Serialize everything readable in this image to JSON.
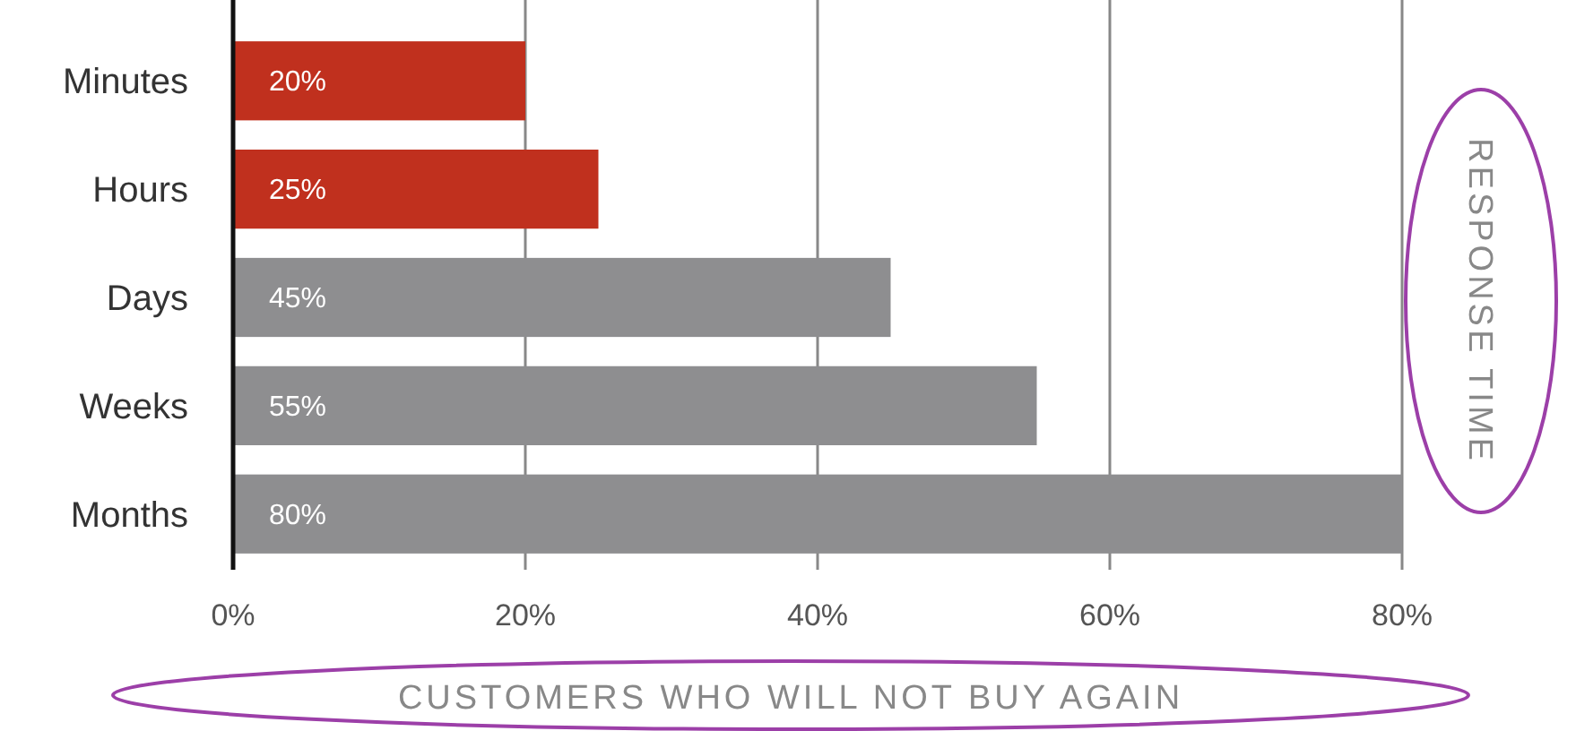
{
  "chart_data": {
    "type": "bar",
    "orientation": "horizontal",
    "xlabel": "CUSTOMERS WHO WILL NOT BUY AGAIN",
    "ylabel": "RESPONSE TIME",
    "categories": [
      "Minutes",
      "Hours",
      "Days",
      "Weeks",
      "Months"
    ],
    "values": [
      20,
      25,
      45,
      55,
      80
    ],
    "colors": [
      "#c0301e",
      "#c0301e",
      "#8e8e90",
      "#8e8e90",
      "#8e8e90"
    ],
    "value_labels": [
      "20%",
      "25%",
      "45%",
      "55%",
      "80%"
    ],
    "xlim": [
      0,
      80
    ],
    "xticks": [
      {
        "value": 0,
        "label": "0%"
      },
      {
        "value": 20,
        "label": "20%"
      },
      {
        "value": 40,
        "label": "40%"
      },
      {
        "value": 60,
        "label": "60%"
      },
      {
        "value": 80,
        "label": "80%"
      }
    ],
    "grid": "x"
  }
}
